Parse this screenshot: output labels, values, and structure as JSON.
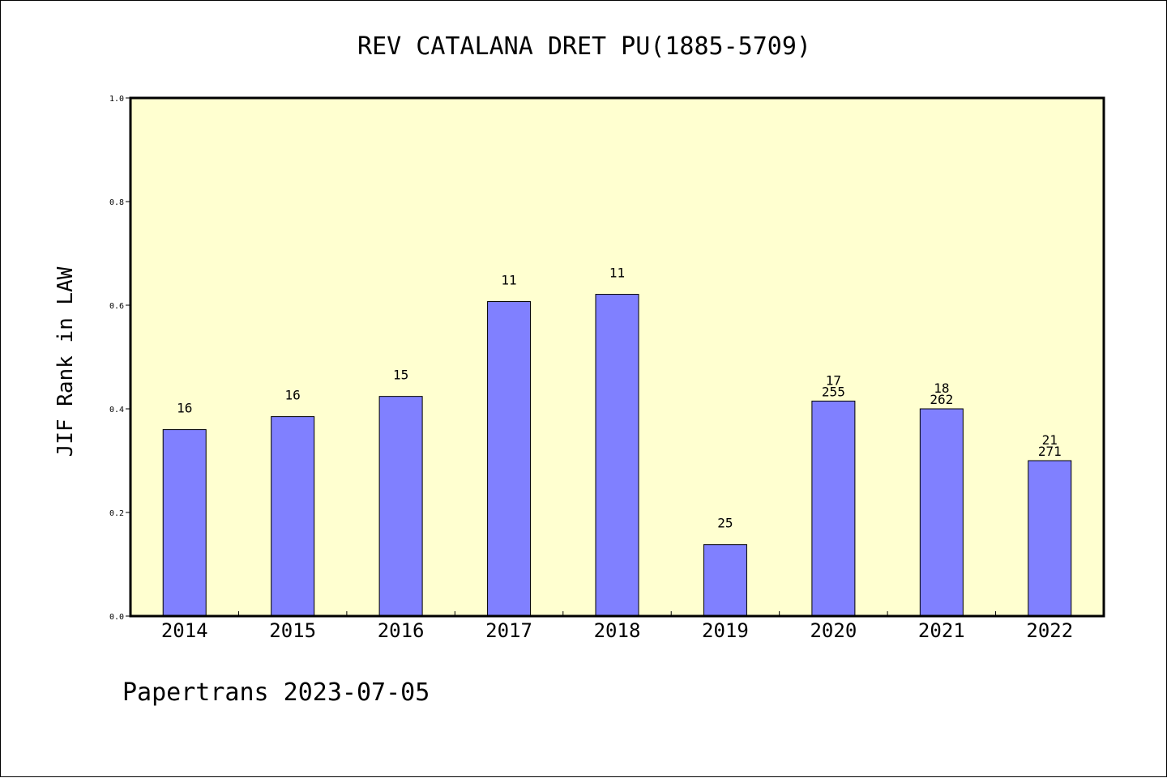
{
  "chart_data": {
    "type": "bar",
    "title": "REV CATALANA DRET PU(1885-5709)",
    "xlabel": "",
    "ylabel": "JIF Rank in LAW",
    "ylim": [
      0,
      1.0
    ],
    "yticks": [
      "0.0",
      "0.2",
      "0.4",
      "0.6",
      "0.8",
      "1.0"
    ],
    "categories": [
      "2014",
      "2015",
      "2016",
      "2017",
      "2018",
      "2019",
      "2020",
      "2021",
      "2022"
    ],
    "values": [
      0.36,
      0.385,
      0.424,
      0.607,
      0.621,
      0.138,
      0.415,
      0.4,
      0.3
    ],
    "bar_labels": [
      [
        "16"
      ],
      [
        "16"
      ],
      [
        "15"
      ],
      [
        "11"
      ],
      [
        "11"
      ],
      [
        "25"
      ],
      [
        "17",
        "255"
      ],
      [
        "18",
        "262"
      ],
      [
        "21",
        "271"
      ]
    ],
    "grid": false,
    "colors": {
      "bar_fill": "#8080ff",
      "plot_background": "#ffffd0",
      "axis": "#000000"
    }
  },
  "footer": {
    "text": "Papertrans 2023-07-05"
  }
}
